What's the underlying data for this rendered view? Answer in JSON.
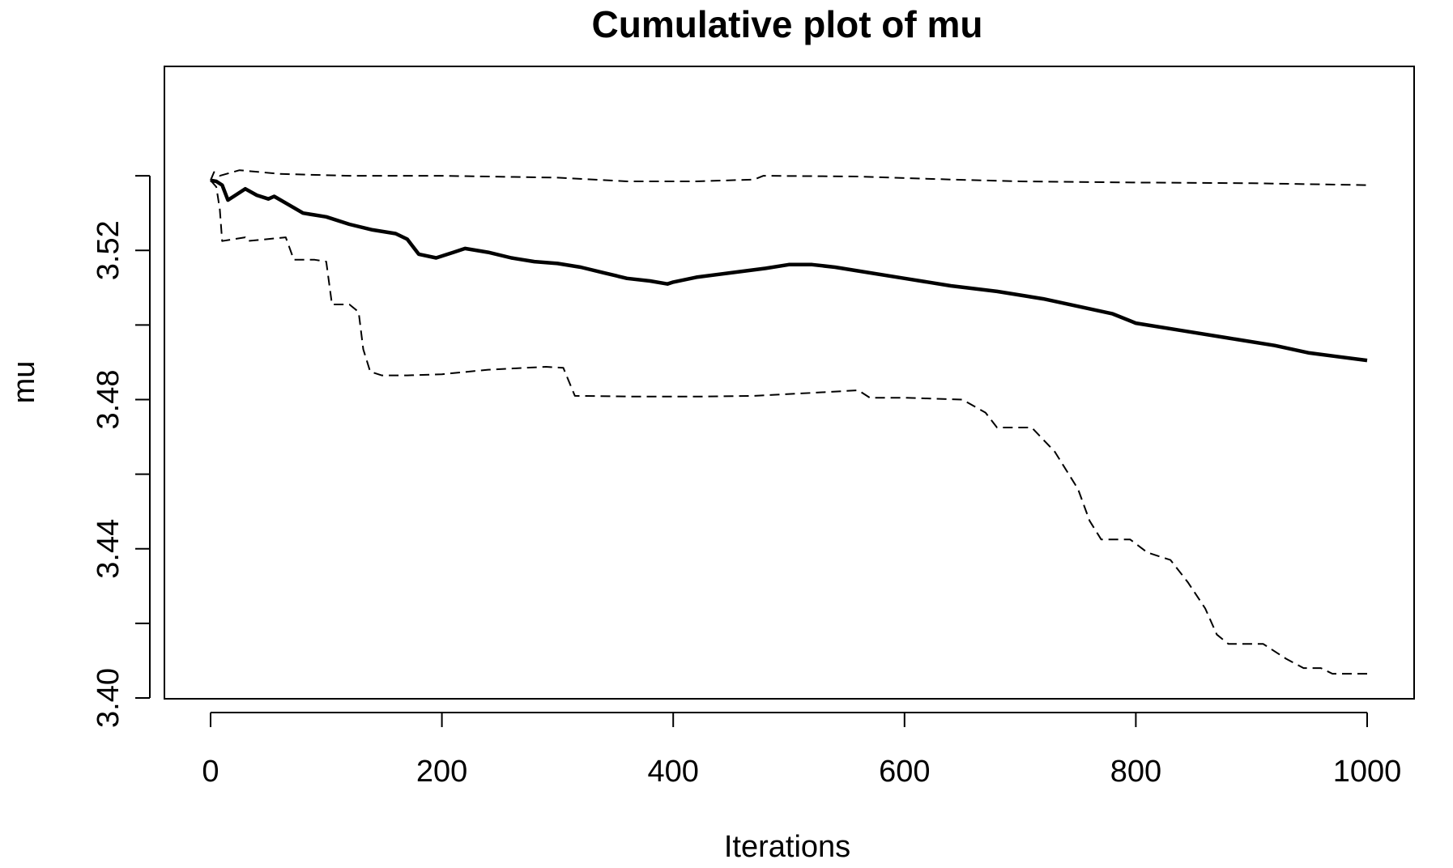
{
  "chart_data": {
    "type": "line",
    "title": "Cumulative plot of mu",
    "xlabel": "Iterations",
    "ylabel": "mu",
    "xlim": [
      0,
      1000
    ],
    "ylim": [
      3.4,
      3.54
    ],
    "xticks": [
      0,
      200,
      400,
      600,
      800,
      1000
    ],
    "xtick_labels": [
      "0",
      "200",
      "400",
      "600",
      "800",
      "1000"
    ],
    "yticks": [
      3.4,
      3.42,
      3.44,
      3.46,
      3.48,
      3.5,
      3.52,
      3.54
    ],
    "ytick_labels": [
      "3.40",
      "",
      "3.44",
      "",
      "3.48",
      "",
      "3.52",
      ""
    ],
    "grid": false,
    "series": [
      {
        "style": "solid",
        "points": [
          [
            0,
            3.5388
          ],
          [
            5,
            3.5385
          ],
          [
            10,
            3.5375
          ],
          [
            15,
            3.5335
          ],
          [
            20,
            3.5345
          ],
          [
            30,
            3.5365
          ],
          [
            40,
            3.5348
          ],
          [
            50,
            3.5338
          ],
          [
            55,
            3.5345
          ],
          [
            70,
            3.5318
          ],
          [
            80,
            3.53
          ],
          [
            90,
            3.5295
          ],
          [
            100,
            3.529
          ],
          [
            120,
            3.527
          ],
          [
            140,
            3.5255
          ],
          [
            160,
            3.5245
          ],
          [
            170,
            3.523
          ],
          [
            180,
            3.519
          ],
          [
            195,
            3.518
          ],
          [
            210,
            3.5195
          ],
          [
            220,
            3.5205
          ],
          [
            240,
            3.5195
          ],
          [
            260,
            3.518
          ],
          [
            280,
            3.517
          ],
          [
            300,
            3.5165
          ],
          [
            320,
            3.5155
          ],
          [
            340,
            3.514
          ],
          [
            360,
            3.5125
          ],
          [
            380,
            3.5118
          ],
          [
            395,
            3.511
          ],
          [
            400,
            3.5115
          ],
          [
            420,
            3.5128
          ],
          [
            450,
            3.514
          ],
          [
            480,
            3.5152
          ],
          [
            500,
            3.5162
          ],
          [
            520,
            3.5162
          ],
          [
            540,
            3.5155
          ],
          [
            560,
            3.5145
          ],
          [
            600,
            3.5125
          ],
          [
            640,
            3.5105
          ],
          [
            680,
            3.509
          ],
          [
            720,
            3.507
          ],
          [
            750,
            3.505
          ],
          [
            780,
            3.503
          ],
          [
            800,
            3.5005
          ],
          [
            840,
            3.4985
          ],
          [
            880,
            3.4965
          ],
          [
            920,
            3.4945
          ],
          [
            950,
            3.4925
          ],
          [
            1000,
            3.4905
          ]
        ]
      },
      {
        "style": "dashed",
        "points": [
          [
            0,
            3.5388
          ],
          [
            3,
            3.541
          ],
          [
            8,
            3.54
          ],
          [
            25,
            3.5415
          ],
          [
            60,
            3.5405
          ],
          [
            120,
            3.54
          ],
          [
            200,
            3.54
          ],
          [
            300,
            3.5395
          ],
          [
            360,
            3.5385
          ],
          [
            420,
            3.5385
          ],
          [
            470,
            3.539
          ],
          [
            478,
            3.54
          ],
          [
            560,
            3.5398
          ],
          [
            640,
            3.539
          ],
          [
            700,
            3.5385
          ],
          [
            800,
            3.5382
          ],
          [
            900,
            3.538
          ],
          [
            1000,
            3.5375
          ]
        ]
      },
      {
        "style": "dashed",
        "points": [
          [
            0,
            3.5388
          ],
          [
            5,
            3.537
          ],
          [
            8,
            3.531
          ],
          [
            10,
            3.5225
          ],
          [
            30,
            3.5235
          ],
          [
            32,
            3.5225
          ],
          [
            65,
            3.5235
          ],
          [
            72,
            3.5175
          ],
          [
            90,
            3.5175
          ],
          [
            100,
            3.517
          ],
          [
            105,
            3.5055
          ],
          [
            120,
            3.5055
          ],
          [
            128,
            3.5035
          ],
          [
            132,
            3.4935
          ],
          [
            138,
            3.4875
          ],
          [
            148,
            3.4865
          ],
          [
            170,
            3.4865
          ],
          [
            200,
            3.4868
          ],
          [
            240,
            3.488
          ],
          [
            290,
            3.4888
          ],
          [
            305,
            3.4885
          ],
          [
            315,
            3.481
          ],
          [
            370,
            3.4808
          ],
          [
            420,
            3.4808
          ],
          [
            470,
            3.481
          ],
          [
            520,
            3.4818
          ],
          [
            560,
            3.4825
          ],
          [
            570,
            3.4805
          ],
          [
            600,
            3.4805
          ],
          [
            650,
            3.48
          ],
          [
            670,
            3.4765
          ],
          [
            680,
            3.4725
          ],
          [
            710,
            3.4725
          ],
          [
            730,
            3.466
          ],
          [
            750,
            3.456
          ],
          [
            760,
            3.4475
          ],
          [
            770,
            3.4425
          ],
          [
            795,
            3.4425
          ],
          [
            810,
            3.439
          ],
          [
            830,
            3.437
          ],
          [
            845,
            3.431
          ],
          [
            860,
            3.424
          ],
          [
            870,
            3.417
          ],
          [
            880,
            3.4145
          ],
          [
            910,
            3.4145
          ],
          [
            930,
            3.4105
          ],
          [
            945,
            3.408
          ],
          [
            960,
            3.408
          ],
          [
            970,
            3.4065
          ],
          [
            1000,
            3.4065
          ]
        ]
      }
    ]
  }
}
